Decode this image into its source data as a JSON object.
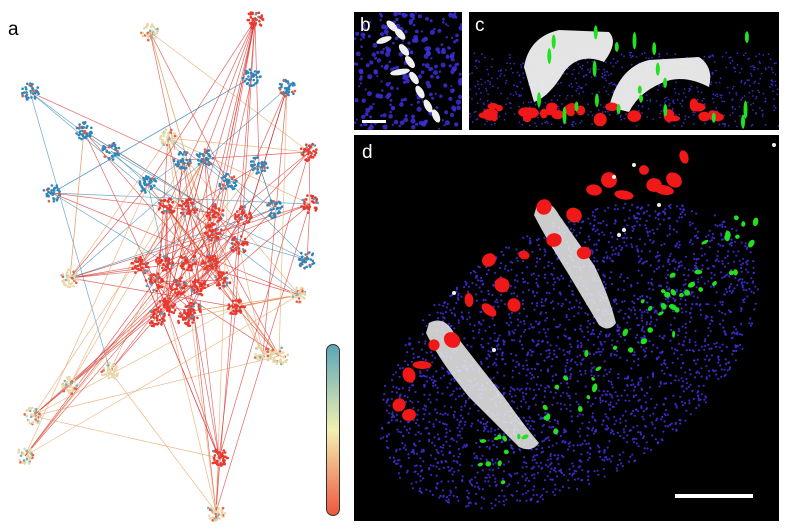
{
  "panels": {
    "a": {
      "label": "a"
    },
    "b": {
      "label": "b"
    },
    "c": {
      "label": "c"
    },
    "d": {
      "label": "d"
    }
  },
  "colors": {
    "blue_cluster": "#2f86b8",
    "red_cluster": "#e8392f",
    "teal_edge": "#3d8fb8",
    "red_edge": "#d9332e",
    "light_node": "#e8d8a8",
    "micro_bg": "#000000",
    "nuclei_blue": "#3b2fd6",
    "red_signal": "#f01818",
    "green_signal": "#22e022",
    "white_signal": "#f0f0f0"
  },
  "colorbar": {
    "gradient": [
      "#5aa6b8",
      "#f2f0b0",
      "#f0563e"
    ],
    "orientation": "vertical"
  },
  "scale_bars": {
    "b": "white",
    "d": "white"
  }
}
